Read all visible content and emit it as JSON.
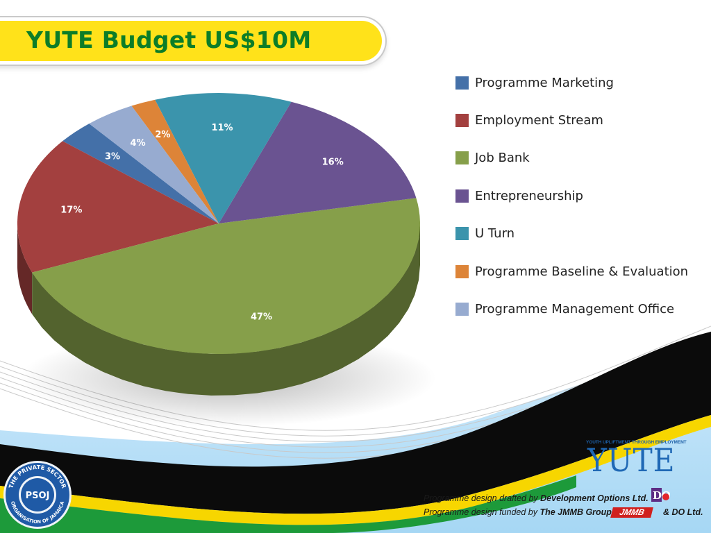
{
  "slide": {
    "title": "YUTE Budget US$10M"
  },
  "chart_data": {
    "type": "pie",
    "title": "YUTE Budget US$10M",
    "categories": [
      "Programme Marketing",
      "Employment Stream",
      "Job Bank",
      "Entrepreneurship",
      "U Turn",
      "Programme Baseline & Evaluation",
      "Programme Management Office"
    ],
    "values": [
      3,
      17,
      47,
      16,
      11,
      2,
      4
    ],
    "data_labels": [
      "3%",
      "17%",
      "47%",
      "16%",
      "11%",
      "2%",
      "4%"
    ],
    "colors": [
      "#4470a8",
      "#a3403f",
      "#869f4a",
      "#6a5391",
      "#3b94ac",
      "#dd8438",
      "#97abd0"
    ],
    "style": "3d",
    "legend_position": "right"
  },
  "footer": {
    "yute_tagline": "YOUTH UPLIFTMENT THROUGH EMPLOYMENT",
    "yute_logo": "YUTE",
    "credit_line1_prefix": "Programme design drafted by ",
    "credit_line1_org": "Development Options Ltd.",
    "credit_line2_prefix": "Programme design funded by ",
    "credit_line2_org": "The JMMB Group",
    "credit_line2_suffix": "& DO Ltd.",
    "do_logo": "DO",
    "jmmb_logo": "JMMB",
    "psoj_seal_top": "THE PRIVATE SECTOR",
    "psoj_seal_bottom": "ORGANISATION OF JAMAICA",
    "psoj_seal_center": "PSOJ"
  },
  "icons": {
    "do_logo": "development-options-logo",
    "jmmb_logo": "jmmb-logo",
    "psoj_seal": "psoj-seal"
  }
}
